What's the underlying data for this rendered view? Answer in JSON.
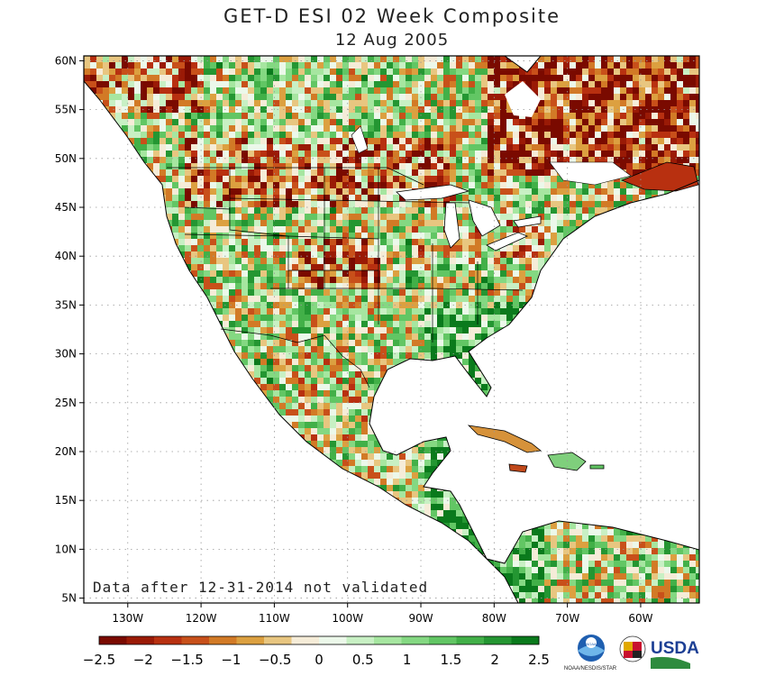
{
  "title": "GET-D ESI 02 Week Composite",
  "subtitle": "12 Aug 2005",
  "note": "Data after 12-31-2014 not validated",
  "map": {
    "lon_range": [
      -136,
      -52
    ],
    "lat_range": [
      4.5,
      60.5
    ],
    "lon_ticks": [
      -130,
      -120,
      -110,
      -100,
      -90,
      -80,
      -70,
      -60
    ],
    "lon_tick_labels": [
      "130W",
      "120W",
      "110W",
      "100W",
      "90W",
      "80W",
      "70W",
      "60W"
    ],
    "lat_ticks": [
      60,
      55,
      50,
      45,
      40,
      35,
      30,
      25,
      20,
      15,
      10,
      5
    ],
    "lat_tick_labels": [
      "60N",
      "55N",
      "50N",
      "45N",
      "40N",
      "35N",
      "30N",
      "25N",
      "20N",
      "15N",
      "10N",
      "5N"
    ],
    "grid": true,
    "ocean_color": "#ffffff"
  },
  "colorbar": {
    "tick_values": [
      -2.5,
      -2,
      -1.5,
      -1,
      -0.5,
      0,
      0.5,
      1,
      1.5,
      2,
      2.5
    ],
    "tick_labels": [
      "−2.5",
      "−2",
      "−1.5",
      "−1",
      "−0.5",
      "0",
      "0.5",
      "1",
      "1.5",
      "2",
      "2.5"
    ],
    "colors": [
      "#7a0a00",
      "#9a1a06",
      "#b83010",
      "#c8501a",
      "#d27a26",
      "#dca040",
      "#e8c680",
      "#f5ecd8",
      "#ecf8ea",
      "#c8f0c4",
      "#a6e6a0",
      "#84d882",
      "#62c664",
      "#42b048",
      "#249632",
      "#0a7a1c"
    ]
  },
  "logos": {
    "noaa_caption": "NOAA/NESDIS/STAR",
    "noaa_text": "NOAA",
    "usda_text": "USDA"
  }
}
